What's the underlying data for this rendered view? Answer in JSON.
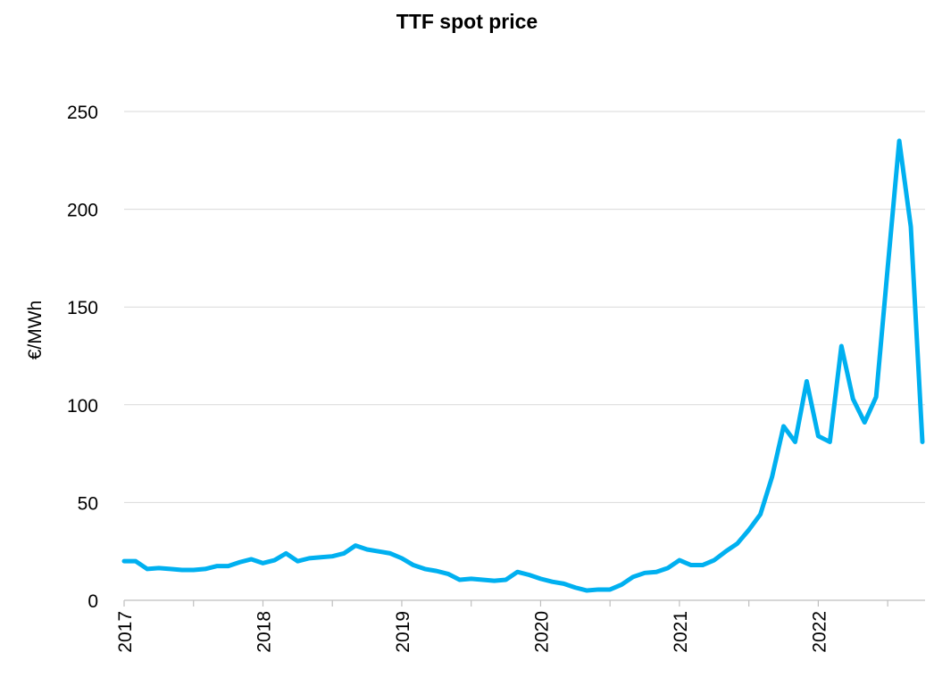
{
  "chart_data": {
    "type": "line",
    "title": "TTF spot price",
    "y_label": "€/MWh",
    "categories": [
      "2017",
      null,
      null,
      null,
      null,
      null,
      null,
      null,
      null,
      null,
      null,
      null,
      "2018",
      null,
      null,
      null,
      null,
      null,
      null,
      null,
      null,
      null,
      null,
      null,
      "2019",
      null,
      null,
      null,
      null,
      null,
      null,
      null,
      null,
      null,
      null,
      null,
      "2020",
      null,
      null,
      null,
      null,
      null,
      null,
      null,
      null,
      null,
      null,
      null,
      "2021",
      null,
      null,
      null,
      null,
      null,
      null,
      null,
      null,
      null,
      null,
      null,
      "2022",
      null,
      null,
      null,
      null,
      null,
      null,
      null,
      null,
      null
    ],
    "series": [
      {
        "name": "TTF spot price",
        "color": "#00b0f0",
        "values": [
          20,
          20,
          16,
          16.5,
          16,
          15.5,
          15.5,
          16,
          17.5,
          17.5,
          19.5,
          21,
          19,
          20.5,
          24,
          20,
          21.5,
          22,
          22.5,
          24,
          28,
          26,
          25,
          24,
          21.5,
          18,
          16,
          15,
          13.5,
          10.5,
          11,
          10.5,
          10,
          10.5,
          14.5,
          13,
          11,
          9.5,
          8.5,
          6.5,
          5,
          5.5,
          5.5,
          8,
          12,
          14,
          14.5,
          16.5,
          20.5,
          18,
          18,
          20.5,
          25,
          29,
          36,
          44,
          63,
          89,
          81,
          112,
          84,
          81,
          130,
          103,
          91,
          104,
          170,
          235,
          191,
          81
        ]
      }
    ],
    "ylim": [
      0,
      250
    ],
    "yticks": [
      0,
      50,
      100,
      150,
      200,
      250
    ],
    "grid": true
  }
}
